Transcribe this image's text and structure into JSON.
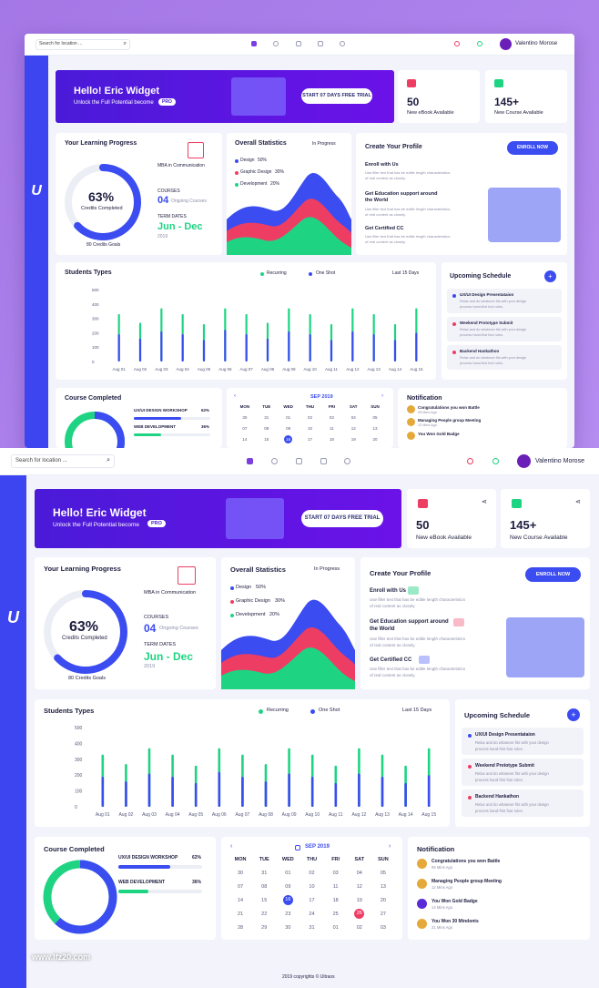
{
  "app": {
    "logo": "U"
  },
  "topbar": {
    "search_placeholder": "Search for location ...",
    "user_name": "Valentino Morose"
  },
  "hero": {
    "title": "Hello! Eric Widget",
    "subtitle": "Unlock the Full Potential become",
    "badge": "PRO",
    "cta": "START 07 DAYS FREE TRIAL"
  },
  "stats": [
    {
      "value": "50",
      "label": "New eBook Available"
    },
    {
      "value": "145+",
      "label": "New Course Available"
    }
  ],
  "progress": {
    "title": "Your Learning Progress",
    "percent": "63%",
    "percent_value": 63,
    "percent_label": "Credits Completed",
    "credits_goal": "80 Credits Goals",
    "program": "MBA in Communication",
    "courses_label": "COURSES",
    "courses_count": "04",
    "courses_desc": "Ongoing Courses",
    "term_label": "TERM DATES",
    "term_value": "Jun - Dec",
    "term_year": "2019"
  },
  "overall": {
    "title": "Overall Statistics",
    "filter": "In Progress",
    "legend": [
      {
        "label": "Design",
        "value": "50%",
        "color": "#3b4cf0"
      },
      {
        "label": "Graphic Design",
        "value": "30%",
        "color": "#ee3d63"
      },
      {
        "label": "Development",
        "value": "20%",
        "color": "#1ed483"
      }
    ]
  },
  "profile": {
    "title": "Create Your Profile",
    "button": "ENROLL NOW",
    "items": [
      {
        "title": "Enroll with Us",
        "desc1": "Use filler text that has be editle length characteristics",
        "desc2": "of real content as closely."
      },
      {
        "title": "Get Education support around",
        "title2": "the World",
        "desc1": "Use filler text that has be editle length characteristics",
        "desc2": "of real content as closely."
      },
      {
        "title": "Get Certified CC",
        "desc1": "Use filler text that has be editle length characteristics",
        "desc2": "of real content as closely."
      }
    ]
  },
  "students": {
    "title": "Students Types",
    "legend_recurring": "Recurring",
    "legend_oneshot": "One Shot",
    "filter": "Last 15 Days"
  },
  "chart_data": {
    "type": "bar",
    "title": "Students Types",
    "categories": [
      "Aug 01",
      "Aug 02",
      "Aug 03",
      "Aug 04",
      "Aug 05",
      "Aug 06",
      "Aug 07",
      "Aug 08",
      "Aug 09",
      "Aug 10",
      "Aug 11",
      "Aug 12",
      "Aug 13",
      "Aug 14",
      "Aug 15"
    ],
    "series": [
      {
        "name": "Recurring",
        "color": "#1ed483",
        "values": [
          330,
          270,
          370,
          330,
          260,
          370,
          330,
          270,
          370,
          330,
          260,
          370,
          330,
          260,
          370
        ]
      },
      {
        "name": "One Shot",
        "color": "#3b4cf0",
        "values": [
          190,
          160,
          210,
          190,
          150,
          220,
          190,
          160,
          210,
          190,
          150,
          210,
          190,
          150,
          200
        ]
      }
    ],
    "ylim": [
      0,
      500
    ],
    "yticks": [
      "500",
      "400",
      "300",
      "200",
      "100",
      "0"
    ],
    "legend": "top"
  },
  "schedule": {
    "title": "Upcoming Schedule",
    "items": [
      {
        "title": "UX/UI Design Presentataion",
        "desc1": "Relax and do whatever fits with your design",
        "desc2": "process hand-first foot rules.",
        "color": "#3b4cf0"
      },
      {
        "title": "Weekend Prototype Submit",
        "desc1": "Relax and do whatever fits with your design",
        "desc2": "process hand-first foot rules.",
        "color": "#ee3d63"
      },
      {
        "title": "Backend Hankathon",
        "desc1": "Relax and do whatever fits with your design",
        "desc2": "process hand-first foot rules.",
        "color": "#ee3d63"
      }
    ]
  },
  "course": {
    "title": "Course Completed",
    "items": [
      {
        "name": "UX/UI DESIGN WORKSHOP",
        "pct": "62%",
        "value": 62,
        "color": "#3b4cf0"
      },
      {
        "name": "WEB DEVELOPMENT",
        "pct": "36%",
        "value": 36,
        "color": "#1ed483"
      }
    ]
  },
  "calendar": {
    "month": "SEP 2019",
    "days": [
      "MON",
      "TUE",
      "WED",
      "THU",
      "FRI",
      "SAT",
      "SUN"
    ],
    "dates": [
      [
        "30",
        "31",
        "01",
        "02",
        "03",
        "04",
        "05"
      ],
      [
        "07",
        "08",
        "09",
        "10",
        "11",
        "12",
        "13"
      ],
      [
        "14",
        "15",
        "16",
        "17",
        "18",
        "19",
        "20"
      ],
      [
        "21",
        "22",
        "23",
        "24",
        "25",
        "26",
        "27"
      ],
      [
        "28",
        "29",
        "30",
        "31",
        "01",
        "02",
        "03"
      ]
    ]
  },
  "mini_calendar_dates": [
    [
      "30",
      "31",
      "01",
      "02",
      "03",
      "04",
      "05"
    ],
    [
      "07",
      "08",
      "09",
      "10",
      "11",
      "12",
      "13"
    ],
    [
      "14",
      "15",
      "16",
      "17",
      "18",
      "19",
      "20"
    ]
  ],
  "notification": {
    "title": "Notification",
    "items": [
      {
        "title": "Congratulations you won Battle",
        "time": "05 Mins Ago"
      },
      {
        "title": "Managing People group Meeting",
        "time": "12 Mins Ago"
      },
      {
        "title": "You Won Gold Badge",
        "time": "14 Mins Ago"
      },
      {
        "title": "You Won 30 Mindonts",
        "time": "21 Mins Ago"
      }
    ]
  },
  "footer": {
    "copyright": "2019 copyrights © Ultraos"
  },
  "watermark": "www.lfz20.com"
}
